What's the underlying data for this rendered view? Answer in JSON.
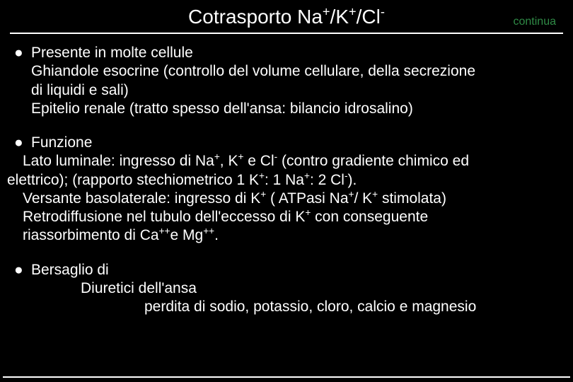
{
  "title_html": "Cotrasporto Na<sup>+</sup>/K<sup>+</sup>/Cl<sup>-</sup>",
  "continua": "continua",
  "bullets": {
    "b1": {
      "l1": "Presente in molte cellule",
      "l2": "Ghiandole esocrine (controllo del volume cellulare, della secrezione",
      "l3": "di liquidi e sali)",
      "l4": "Epitelio renale (tratto spesso dell'ansa: bilancio idrosalino)"
    },
    "b2": {
      "l1": "Funzione",
      "l2_html": "Lato luminale: ingresso di Na<sup>+</sup>, K<sup>+</sup> e Cl<sup>-</sup> (contro gradiente chimico ed",
      "l3_html": "elettrico); (rapporto stechiometrico 1 K<sup>+</sup>: 1 Na<sup>+</sup>: 2 Cl<sup>-</sup>).",
      "l4_html": "Versante basolaterale: ingresso di K<sup>+</sup> ( ATPasi Na<sup>+</sup>/ K<sup>+</sup> stimolata)",
      "l5_html": "Retrodiffusione nel tubulo dell'eccesso di K<sup>+</sup> con conseguente",
      "l6_html": "riassorbimento di Ca<sup>++</sup>e Mg<sup>++</sup>."
    },
    "b3": {
      "l1": "Bersaglio di",
      "l2": "Diuretici dell'ansa",
      "l3": "perdita di sodio, potassio, cloro, calcio e magnesio"
    }
  },
  "colors": {
    "background": "#000000",
    "text": "#ffffff",
    "accent": "#2f8a46"
  }
}
